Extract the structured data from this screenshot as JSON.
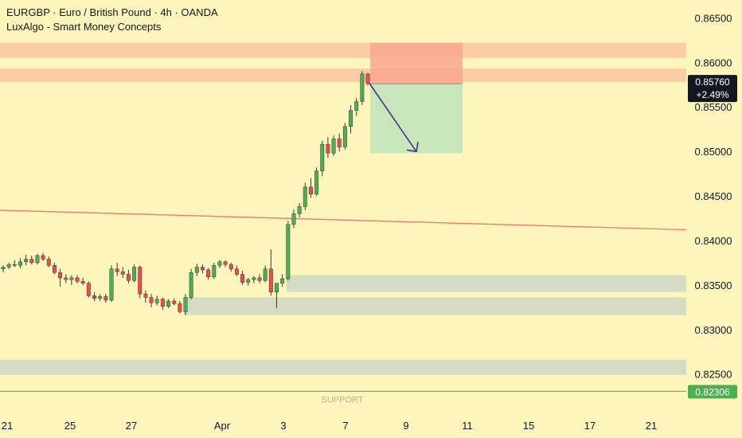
{
  "header": {
    "title": "EURGBP · Euro / British Pound · 4h · OANDA",
    "indicator": "LuxAlgo - Smart Money Concepts"
  },
  "chart_data": {
    "type": "candlestick",
    "symbol": "EURGBP",
    "interval": "4h",
    "ylim": [
      0.8205,
      0.867
    ],
    "y_ticks": [
      "0.86500",
      "0.86000",
      "0.85500",
      "0.85000",
      "0.84500",
      "0.84000",
      "0.83500",
      "0.83000",
      "0.82500"
    ],
    "x_ticks": [
      "21",
      "25",
      "27",
      "Apr",
      "3",
      "7",
      "9",
      "11",
      "15",
      "17",
      "21"
    ],
    "last_price": {
      "value": "0.85760",
      "change": "+2.49%"
    },
    "support": {
      "value": "0.82306",
      "label": "SUPPORT"
    },
    "zones": [
      {
        "kind": "supply",
        "from": 0.8605,
        "to": 0.8622
      },
      {
        "kind": "supply",
        "from": 0.8578,
        "to": 0.8593
      },
      {
        "kind": "demand",
        "from": 0.8342,
        "to": 0.8361
      },
      {
        "kind": "demand",
        "from": 0.8316,
        "to": 0.8336
      },
      {
        "kind": "demand",
        "from": 0.8249,
        "to": 0.8266
      }
    ],
    "trendline": {
      "from": 0.8434,
      "to": 0.8412
    },
    "short_position": {
      "entry": 0.8576,
      "stop": 0.8622,
      "target": 0.8498
    },
    "candles": [
      [
        0.8368,
        0.8372,
        0.8364,
        0.837
      ],
      [
        0.837,
        0.8375,
        0.8368,
        0.8373
      ],
      [
        0.8373,
        0.8378,
        0.837,
        0.8372
      ],
      [
        0.8372,
        0.838,
        0.8369,
        0.8376
      ],
      [
        0.8376,
        0.8384,
        0.8372,
        0.8379
      ],
      [
        0.8379,
        0.8383,
        0.8373,
        0.8375
      ],
      [
        0.8375,
        0.8385,
        0.8373,
        0.8383
      ],
      [
        0.8383,
        0.8386,
        0.8377,
        0.8379
      ],
      [
        0.8379,
        0.8382,
        0.837,
        0.8372
      ],
      [
        0.8372,
        0.8375,
        0.8362,
        0.8364
      ],
      [
        0.8364,
        0.8368,
        0.8348,
        0.8358
      ],
      [
        0.8358,
        0.8362,
        0.8352,
        0.8356
      ],
      [
        0.8356,
        0.8361,
        0.835,
        0.8358
      ],
      [
        0.8358,
        0.8361,
        0.8352,
        0.8354
      ],
      [
        0.8354,
        0.8358,
        0.835,
        0.8352
      ],
      [
        0.8352,
        0.8354,
        0.8336,
        0.8338
      ],
      [
        0.8338,
        0.8342,
        0.8332,
        0.8335
      ],
      [
        0.8335,
        0.834,
        0.8332,
        0.8337
      ],
      [
        0.8337,
        0.834,
        0.833,
        0.8333
      ],
      [
        0.8333,
        0.8372,
        0.8331,
        0.8368
      ],
      [
        0.8368,
        0.8375,
        0.836,
        0.8365
      ],
      [
        0.8365,
        0.837,
        0.8358,
        0.8362
      ],
      [
        0.8362,
        0.8367,
        0.8352,
        0.8355
      ],
      [
        0.8355,
        0.8373,
        0.8353,
        0.837
      ],
      [
        0.837,
        0.8372,
        0.8335,
        0.834
      ],
      [
        0.834,
        0.8344,
        0.833,
        0.8336
      ],
      [
        0.8336,
        0.834,
        0.8325,
        0.833
      ],
      [
        0.833,
        0.8338,
        0.8327,
        0.8334
      ],
      [
        0.8334,
        0.8336,
        0.8322,
        0.8326
      ],
      [
        0.8326,
        0.8334,
        0.8324,
        0.8332
      ],
      [
        0.8332,
        0.8335,
        0.8327,
        0.8329
      ],
      [
        0.8329,
        0.8332,
        0.8318,
        0.832
      ],
      [
        0.832,
        0.834,
        0.8316,
        0.8336
      ],
      [
        0.8336,
        0.8368,
        0.8334,
        0.8364
      ],
      [
        0.8364,
        0.8374,
        0.836,
        0.837
      ],
      [
        0.837,
        0.8373,
        0.8363,
        0.8367
      ],
      [
        0.8367,
        0.8369,
        0.8356,
        0.8359
      ],
      [
        0.8359,
        0.8375,
        0.8357,
        0.8372
      ],
      [
        0.8372,
        0.8378,
        0.8369,
        0.8376
      ],
      [
        0.8376,
        0.8378,
        0.837,
        0.8373
      ],
      [
        0.8373,
        0.8375,
        0.8365,
        0.8368
      ],
      [
        0.8368,
        0.8372,
        0.836,
        0.8362
      ],
      [
        0.8362,
        0.8366,
        0.835,
        0.8353
      ],
      [
        0.8353,
        0.8358,
        0.8349,
        0.8356
      ],
      [
        0.8356,
        0.836,
        0.8352,
        0.8358
      ],
      [
        0.8358,
        0.8362,
        0.8352,
        0.8355
      ],
      [
        0.8355,
        0.8372,
        0.8353,
        0.8368
      ],
      [
        0.8368,
        0.839,
        0.8338,
        0.8342
      ],
      [
        0.8342,
        0.8348,
        0.8324,
        0.8352
      ],
      [
        0.8352,
        0.8362,
        0.8348,
        0.8357
      ],
      [
        0.8357,
        0.8422,
        0.8355,
        0.8418
      ],
      [
        0.8418,
        0.8435,
        0.8414,
        0.843
      ],
      [
        0.843,
        0.8442,
        0.8426,
        0.8438
      ],
      [
        0.8438,
        0.8465,
        0.8434,
        0.846
      ],
      [
        0.846,
        0.847,
        0.8448,
        0.8452
      ],
      [
        0.8452,
        0.8482,
        0.845,
        0.8478
      ],
      [
        0.8478,
        0.8512,
        0.8472,
        0.8508
      ],
      [
        0.8508,
        0.8516,
        0.8493,
        0.8498
      ],
      [
        0.8498,
        0.8518,
        0.8495,
        0.8514
      ],
      [
        0.8514,
        0.852,
        0.85,
        0.8505
      ],
      [
        0.8505,
        0.8532,
        0.8502,
        0.8528
      ],
      [
        0.8528,
        0.8552,
        0.852,
        0.8546
      ],
      [
        0.8546,
        0.856,
        0.854,
        0.8556
      ],
      [
        0.8556,
        0.859,
        0.8552,
        0.8587
      ],
      [
        0.8587,
        0.8588,
        0.8574,
        0.8576
      ]
    ]
  }
}
